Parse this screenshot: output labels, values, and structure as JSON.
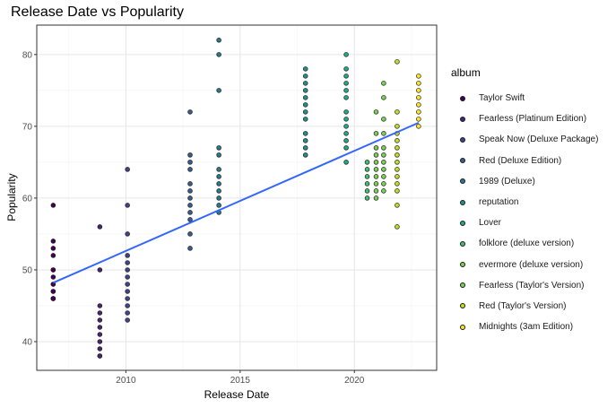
{
  "chart_data": {
    "type": "scatter",
    "title": "Release Date vs Popularity",
    "xlabel": "Release Date",
    "ylabel": "Popularity",
    "xlim": [
      2006.1,
      2023.6
    ],
    "ylim": [
      36.0,
      84.1
    ],
    "x_ticks": [
      2010,
      2015,
      2020
    ],
    "y_ticks": [
      40,
      50,
      60,
      70,
      80
    ],
    "grid": true,
    "legend_title": "album",
    "legend_position": "right",
    "trend_line": {
      "type": "linear",
      "color": "#3366ff",
      "start": [
        2006.82,
        48.2
      ],
      "end": [
        2022.81,
        70.5
      ]
    },
    "series": [
      {
        "name": "Taylor Swift",
        "color": "#440154",
        "x": 2006.82,
        "values": [
          59,
          54,
          53,
          52,
          50,
          50,
          49,
          48,
          48,
          47,
          47,
          46,
          46,
          46,
          46
        ]
      },
      {
        "name": "Fearless (Platinum Edition)",
        "color": "#482475",
        "x": 2008.86,
        "values": [
          56,
          50,
          45,
          44,
          43,
          42,
          41,
          40,
          39,
          38,
          38
        ]
      },
      {
        "name": "Speak Now (Deluxe Package)",
        "color": "#414487",
        "x": 2010.07,
        "values": [
          64,
          59,
          55,
          52,
          51,
          50,
          49,
          48,
          47,
          46,
          45,
          44,
          43
        ]
      },
      {
        "name": "Red (Deluxe Edition)",
        "color": "#355f8d",
        "x": 2012.81,
        "values": [
          72,
          66,
          65,
          64,
          62,
          61,
          60,
          59,
          58,
          57,
          55,
          53
        ]
      },
      {
        "name": "1989 (Deluxe)",
        "color": "#2a788e",
        "x": 2014.07,
        "values": [
          82,
          80,
          75,
          67,
          66,
          64,
          63,
          62,
          61,
          60,
          59,
          58
        ]
      },
      {
        "name": "reputation",
        "color": "#21908d",
        "x": 2017.86,
        "values": [
          78,
          77,
          76,
          75,
          74,
          73,
          72,
          71,
          69,
          68,
          67,
          66
        ]
      },
      {
        "name": "Lover",
        "color": "#22a884",
        "x": 2019.64,
        "values": [
          80,
          78,
          77,
          76,
          75,
          74,
          72,
          71,
          70,
          69,
          68,
          67,
          65
        ]
      },
      {
        "name": "folklore (deluxe version)",
        "color": "#42be71",
        "x": 2020.56,
        "values": [
          65,
          64,
          63,
          62,
          61,
          60
        ]
      },
      {
        "name": "evermore (deluxe version)",
        "color": "#7ad151",
        "x": 2020.95,
        "values": [
          72,
          69,
          67,
          66,
          65,
          64,
          63,
          62,
          61,
          60
        ]
      },
      {
        "name": "Fearless (Taylor's Version)",
        "color": "#7ad151",
        "x": 2021.28,
        "values": [
          76,
          74,
          71,
          69,
          67,
          66,
          65,
          64,
          63,
          62,
          61
        ]
      },
      {
        "name": "Red (Taylor's Version)",
        "color": "#bddf26",
        "x": 2021.87,
        "values": [
          79,
          72,
          70,
          69,
          68,
          67,
          66,
          65,
          64,
          63,
          62,
          61,
          59,
          56
        ]
      },
      {
        "name": "Midnights (3am Edition)",
        "color": "#fde725",
        "x": 2022.81,
        "values": [
          77,
          76,
          75,
          74,
          73,
          72,
          71,
          70
        ]
      }
    ]
  }
}
